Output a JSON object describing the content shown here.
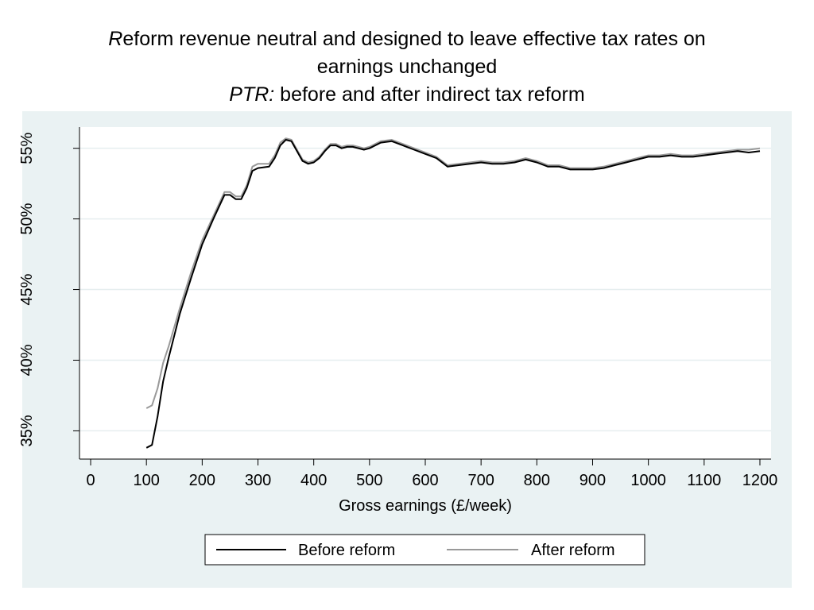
{
  "title": {
    "line1_italic": "R",
    "line1_rest": "eform revenue neutral and designed to leave effective tax rates on",
    "line2": "earnings unchanged",
    "line3_italic": "PTR:",
    "line3_rest": " before and after indirect tax reform"
  },
  "colors": {
    "panel_bg": "#eaf2f3",
    "plot_bg": "#ffffff",
    "grid": "#e6eeef",
    "before": "#000000",
    "after": "#999999"
  },
  "chart_data": {
    "type": "line",
    "title": "",
    "xlabel": "Gross earnings (£/week)",
    "ylabel": "",
    "xlim": [
      -20,
      1220
    ],
    "ylim": [
      33,
      56.5
    ],
    "x_ticks": [
      0,
      100,
      200,
      300,
      400,
      500,
      600,
      700,
      800,
      900,
      1000,
      1100,
      1200
    ],
    "x_tick_labels": [
      "0",
      "100",
      "200",
      "300",
      "400",
      "500",
      "600",
      "700",
      "800",
      "900",
      "1000",
      "1100",
      "1200"
    ],
    "y_ticks": [
      35,
      40,
      45,
      50,
      55
    ],
    "y_tick_labels": [
      "35%",
      "40%",
      "45%",
      "50%",
      "55%"
    ],
    "grid": true,
    "legend_position": "bottom",
    "series": [
      {
        "name": "Before reform",
        "x": [
          100,
          110,
          120,
          130,
          140,
          160,
          180,
          200,
          220,
          240,
          250,
          260,
          270,
          280,
          290,
          300,
          320,
          330,
          340,
          350,
          360,
          370,
          380,
          390,
          400,
          410,
          420,
          430,
          440,
          450,
          460,
          470,
          480,
          490,
          500,
          520,
          540,
          560,
          580,
          600,
          620,
          640,
          660,
          680,
          700,
          720,
          740,
          760,
          780,
          800,
          820,
          840,
          860,
          880,
          900,
          920,
          940,
          960,
          980,
          1000,
          1020,
          1040,
          1060,
          1080,
          1100,
          1120,
          1140,
          1160,
          1180,
          1200
        ],
        "y": [
          33.8,
          34.0,
          36.0,
          38.5,
          40.2,
          43.3,
          45.8,
          48.2,
          50.0,
          51.7,
          51.7,
          51.4,
          51.4,
          52.2,
          53.4,
          53.6,
          53.7,
          54.3,
          55.2,
          55.6,
          55.5,
          54.8,
          54.1,
          53.9,
          54.0,
          54.3,
          54.8,
          55.2,
          55.2,
          55.0,
          55.1,
          55.1,
          55.0,
          54.9,
          55.0,
          55.4,
          55.5,
          55.2,
          54.9,
          54.6,
          54.3,
          53.7,
          53.8,
          53.9,
          54.0,
          53.9,
          53.9,
          54.0,
          54.2,
          54.0,
          53.7,
          53.7,
          53.5,
          53.5,
          53.5,
          53.6,
          53.8,
          54.0,
          54.2,
          54.4,
          54.4,
          54.5,
          54.4,
          54.4,
          54.5,
          54.6,
          54.7,
          54.8,
          54.7,
          54.8
        ]
      },
      {
        "name": "After reform",
        "x": [
          100,
          110,
          120,
          130,
          140,
          160,
          180,
          200,
          220,
          240,
          250,
          260,
          270,
          280,
          290,
          300,
          320,
          330,
          340,
          350,
          360,
          370,
          380,
          390,
          400,
          410,
          420,
          430,
          440,
          450,
          460,
          470,
          480,
          490,
          500,
          520,
          540,
          560,
          580,
          600,
          620,
          640,
          660,
          680,
          700,
          720,
          740,
          760,
          780,
          800,
          820,
          840,
          860,
          880,
          900,
          920,
          940,
          960,
          980,
          1000,
          1020,
          1040,
          1060,
          1080,
          1100,
          1120,
          1140,
          1160,
          1180,
          1200
        ],
        "y": [
          36.6,
          36.8,
          38.0,
          39.8,
          41.0,
          43.7,
          46.2,
          48.5,
          50.2,
          51.9,
          51.9,
          51.6,
          51.6,
          52.4,
          53.7,
          53.9,
          53.9,
          54.5,
          55.4,
          55.7,
          55.6,
          54.9,
          54.2,
          54.0,
          54.1,
          54.4,
          54.9,
          55.3,
          55.3,
          55.1,
          55.2,
          55.2,
          55.1,
          55.0,
          55.1,
          55.5,
          55.6,
          55.3,
          55.0,
          54.7,
          54.4,
          53.8,
          53.9,
          54.0,
          54.1,
          54.0,
          54.0,
          54.1,
          54.3,
          54.1,
          53.8,
          53.8,
          53.6,
          53.6,
          53.6,
          53.7,
          53.9,
          54.1,
          54.3,
          54.5,
          54.5,
          54.6,
          54.5,
          54.5,
          54.6,
          54.7,
          54.8,
          54.9,
          54.9,
          55.0
        ]
      }
    ]
  }
}
